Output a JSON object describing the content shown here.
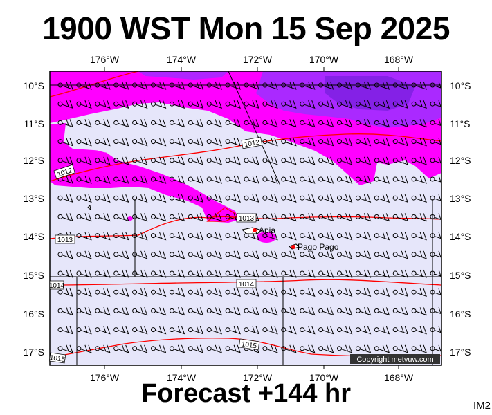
{
  "title": "1900 WST Mon 15 Sep 2025",
  "subtitle": "Forecast +144 hr",
  "map_code": "IM2",
  "copyright": "Copyright metvuw.com",
  "lon_labels": [
    "176°W",
    "174°W",
    "172°W",
    "170°W",
    "168°W"
  ],
  "lat_labels": [
    "10°S",
    "11°S",
    "12°S",
    "13°S",
    "14°S",
    "15°S",
    "16°S",
    "17°S"
  ],
  "isobar_labels": [
    "1012",
    "1012",
    "1013",
    "1013",
    "1014",
    "1014",
    "1015",
    "1015"
  ],
  "places": [
    "Apia",
    "Pago Pago"
  ],
  "colors": {
    "background": "#e6e6fa",
    "rain_light": "#ff00ff",
    "rain_heavy": "#8a2be2",
    "isobar": "#ff0000",
    "land": "#ffffff"
  }
}
